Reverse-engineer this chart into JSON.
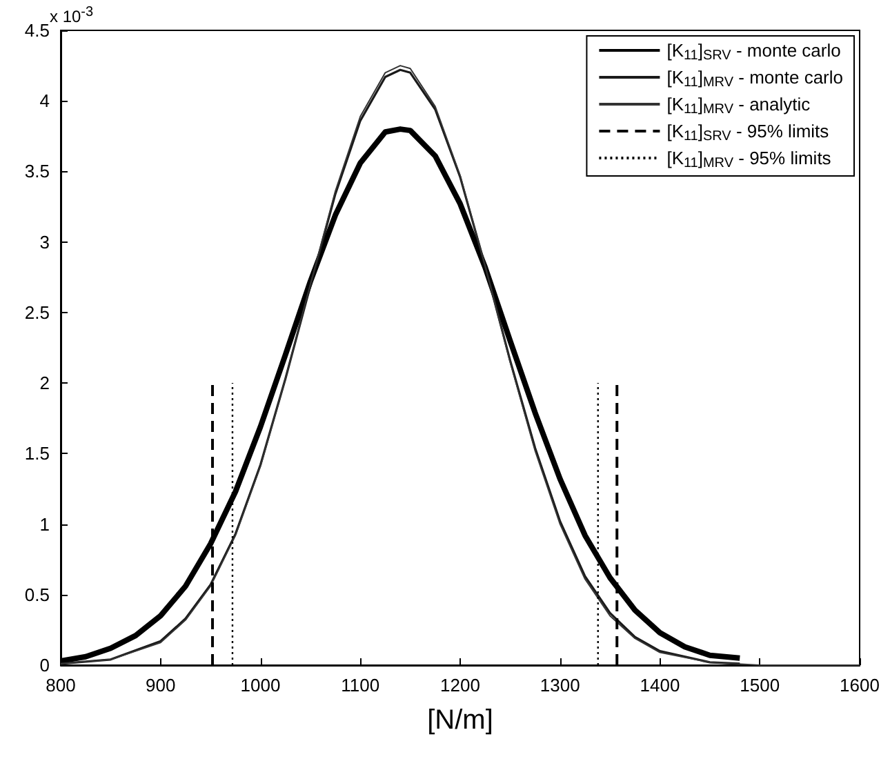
{
  "chart_data": {
    "type": "line",
    "xlabel": "[N/m]",
    "annotations": [
      "x 10$^{-3}$"
    ],
    "xlim": [
      800,
      1600
    ],
    "xticks": [
      800,
      900,
      1000,
      1100,
      1200,
      1300,
      1400,
      1500,
      1600
    ],
    "ylim": [
      0,
      4.5
    ],
    "yticks": [
      0,
      0.5,
      1,
      1.5,
      2,
      2.5,
      3,
      3.5,
      4,
      4.5
    ],
    "grid": false,
    "legend": "top right",
    "marker": "none",
    "series": [
      {
        "name": "[K$_{11}$]$_{SRV}$ - monte carlo",
        "color": "#000000",
        "line_style": "solid",
        "x": [
          800,
          825,
          850,
          875,
          900,
          925,
          950,
          975,
          1000,
          1025,
          1050,
          1075,
          1100,
          1125,
          1140,
          1150,
          1175,
          1200,
          1225,
          1250,
          1275,
          1300,
          1325,
          1350,
          1375,
          1400,
          1425,
          1450,
          1480
        ],
        "values": [
          0.03,
          0.06,
          0.12,
          0.21,
          0.35,
          0.56,
          0.86,
          1.23,
          1.69,
          2.2,
          2.72,
          3.19,
          3.56,
          3.78,
          3.8,
          3.79,
          3.61,
          3.27,
          2.82,
          2.3,
          1.79,
          1.32,
          0.92,
          0.62,
          0.39,
          0.23,
          0.13,
          0.07,
          0.05
        ]
      },
      {
        "name": "[K$_{11}$]$_{MRV}$ - monte carlo",
        "color": "#1a1a1a",
        "line_style": "solid",
        "x": [
          800,
          850,
          900,
          925,
          950,
          975,
          1000,
          1025,
          1050,
          1075,
          1100,
          1125,
          1140,
          1150,
          1175,
          1200,
          1225,
          1250,
          1275,
          1300,
          1325,
          1350,
          1375,
          1400,
          1450,
          1480
        ],
        "values": [
          0.01,
          0.04,
          0.17,
          0.33,
          0.57,
          0.93,
          1.42,
          2.03,
          2.69,
          3.34,
          3.86,
          4.17,
          4.22,
          4.2,
          3.94,
          3.46,
          2.83,
          2.16,
          1.54,
          1.02,
          0.63,
          0.37,
          0.2,
          0.1,
          0.02,
          0.01
        ]
      },
      {
        "name": "[K$_{11}$]$_{MRV}$ - analytic",
        "color": "#333333",
        "line_style": "solid",
        "x": [
          800,
          850,
          900,
          925,
          950,
          975,
          1000,
          1025,
          1050,
          1075,
          1100,
          1125,
          1140,
          1150,
          1175,
          1200,
          1225,
          1250,
          1275,
          1300,
          1325,
          1350,
          1375,
          1400,
          1450,
          1500,
          1550,
          1600
        ],
        "values": [
          0.01,
          0.04,
          0.16,
          0.32,
          0.56,
          0.92,
          1.41,
          2.03,
          2.7,
          3.36,
          3.89,
          4.2,
          4.25,
          4.23,
          3.96,
          3.47,
          2.83,
          2.15,
          1.52,
          1.0,
          0.61,
          0.35,
          0.19,
          0.09,
          0.02,
          0,
          0,
          0
        ]
      },
      {
        "name": "[K$_{11}$]$_{SRV}$ - 95% limits",
        "color": "#000000",
        "line_style": "dashed",
        "x": [
          952,
          952,
          null,
          1357,
          1357
        ],
        "values": [
          0,
          2.02,
          null,
          0,
          2.02
        ]
      },
      {
        "name": "[K$_{11}$]$_{MRV}$ - 95% limits",
        "color": "#000000",
        "line_style": "dotted",
        "x": [
          972,
          972,
          null,
          1338,
          1338
        ],
        "values": [
          0,
          2.0,
          null,
          0,
          2.0
        ]
      }
    ]
  }
}
